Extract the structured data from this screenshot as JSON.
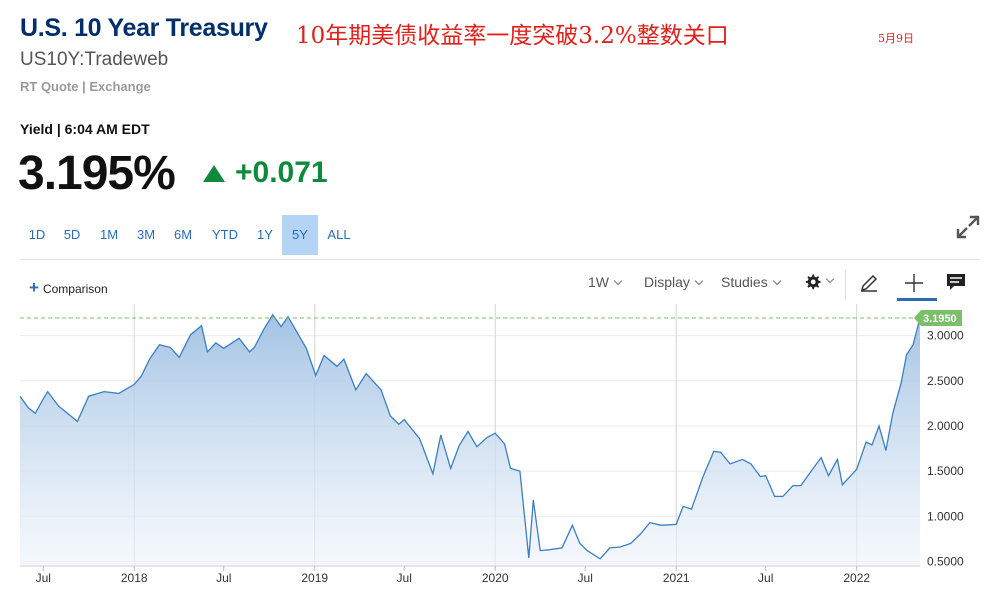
{
  "header": {
    "title": "U.S. 10 Year Treasury",
    "annotation": "10年期美债收益率一度突破3.2%整数关口",
    "annotation_date": "5月9日",
    "symbol": "US10Y:Tradeweb",
    "quote_source": "RT Quote | Exchange"
  },
  "quote": {
    "yield_time": "Yield | 6:04 AM EDT",
    "value": "3.195%",
    "change": "+0.071",
    "up_color": "#0f8a3d"
  },
  "ranges": [
    "1D",
    "5D",
    "1M",
    "3M",
    "6M",
    "YTD",
    "1Y",
    "5Y",
    "ALL"
  ],
  "active_range": "5Y",
  "toolbar": {
    "comparison": "Comparison",
    "interval": "1W",
    "display": "Display",
    "studies": "Studies"
  },
  "icons": [
    "expand-icon",
    "gear-icon",
    "pencil-icon",
    "crosshair-icon",
    "comment-icon",
    "plus-icon",
    "up-triangle-icon"
  ],
  "colors": {
    "title": "#002f6c",
    "annotation": "#e0201b",
    "line": "#3c7fc0",
    "accent": "#2a6db4",
    "last_label": "#7cbf6b"
  },
  "chart_data": {
    "type": "area",
    "series": [
      {
        "x": [
          "2017-05-15",
          "2017-06-01",
          "2017-06-15",
          "2017-07-01",
          "2017-07-10",
          "2017-08-01",
          "2017-09-08",
          "2017-10-01",
          "2017-11-01",
          "2017-12-01",
          "2018-01-01",
          "2018-01-15",
          "2018-02-01",
          "2018-02-21",
          "2018-03-15",
          "2018-04-02",
          "2018-04-25",
          "2018-05-17",
          "2018-05-29",
          "2018-06-15",
          "2018-07-01",
          "2018-08-01",
          "2018-08-22",
          "2018-09-01",
          "2018-09-20",
          "2018-10-08",
          "2018-10-25",
          "2018-11-08",
          "2018-11-30",
          "2018-12-15",
          "2019-01-03",
          "2019-01-20",
          "2019-02-15",
          "2019-03-01",
          "2019-03-25",
          "2019-04-15",
          "2019-05-15",
          "2019-06-03",
          "2019-06-20",
          "2019-07-01",
          "2019-08-01",
          "2019-08-28",
          "2019-09-13",
          "2019-10-03",
          "2019-10-20",
          "2019-11-07",
          "2019-11-25",
          "2019-12-15",
          "2020-01-01",
          "2020-01-20",
          "2020-02-01",
          "2020-02-20",
          "2020-03-09",
          "2020-03-18",
          "2020-04-01",
          "2020-04-20",
          "2020-05-15",
          "2020-06-05",
          "2020-06-20",
          "2020-07-05",
          "2020-07-31",
          "2020-08-20",
          "2020-09-10",
          "2020-10-01",
          "2020-10-20",
          "2020-11-09",
          "2020-12-01",
          "2021-01-01",
          "2021-01-15",
          "2021-02-01",
          "2021-02-25",
          "2021-03-18",
          "2021-04-01",
          "2021-04-20",
          "2021-05-15",
          "2021-06-01",
          "2021-06-20",
          "2021-07-01",
          "2021-07-19",
          "2021-08-05",
          "2021-08-25",
          "2021-09-10",
          "2021-10-01",
          "2021-10-21",
          "2021-11-05",
          "2021-11-23",
          "2021-12-03",
          "2021-12-20",
          "2022-01-01",
          "2022-01-20",
          "2022-02-01",
          "2022-02-15",
          "2022-03-01",
          "2022-03-15",
          "2022-04-01",
          "2022-04-12",
          "2022-04-25",
          "2022-05-09"
        ],
        "y": [
          2.33,
          2.2,
          2.14,
          2.3,
          2.38,
          2.22,
          2.05,
          2.33,
          2.38,
          2.36,
          2.46,
          2.55,
          2.74,
          2.9,
          2.87,
          2.76,
          3.01,
          3.11,
          2.82,
          2.92,
          2.86,
          2.97,
          2.82,
          2.87,
          3.07,
          3.23,
          3.1,
          3.21,
          3.0,
          2.86,
          2.56,
          2.78,
          2.66,
          2.74,
          2.4,
          2.58,
          2.4,
          2.11,
          2.02,
          2.07,
          1.86,
          1.47,
          1.9,
          1.53,
          1.78,
          1.94,
          1.77,
          1.87,
          1.92,
          1.8,
          1.53,
          1.5,
          0.54,
          1.18,
          0.62,
          0.63,
          0.65,
          0.9,
          0.7,
          0.62,
          0.53,
          0.65,
          0.66,
          0.7,
          0.8,
          0.93,
          0.9,
          0.91,
          1.11,
          1.08,
          1.45,
          1.72,
          1.71,
          1.58,
          1.63,
          1.58,
          1.44,
          1.45,
          1.22,
          1.22,
          1.34,
          1.34,
          1.5,
          1.65,
          1.45,
          1.63,
          1.35,
          1.45,
          1.52,
          1.82,
          1.79,
          2.0,
          1.73,
          2.14,
          2.48,
          2.79,
          2.9,
          3.195
        ]
      }
    ],
    "x_ticks": [
      "Jul",
      "2018",
      "Jul",
      "2019",
      "Jul",
      "2020",
      "Jul",
      "2021",
      "Jul",
      "2022"
    ],
    "y_ticks": [
      "3.0000",
      "2.5000",
      "2.0000",
      "1.5000",
      "1.0000",
      "0.5000"
    ],
    "ylim": [
      0.45,
      3.35
    ],
    "last_value_label": "3.1950",
    "grid": true
  }
}
